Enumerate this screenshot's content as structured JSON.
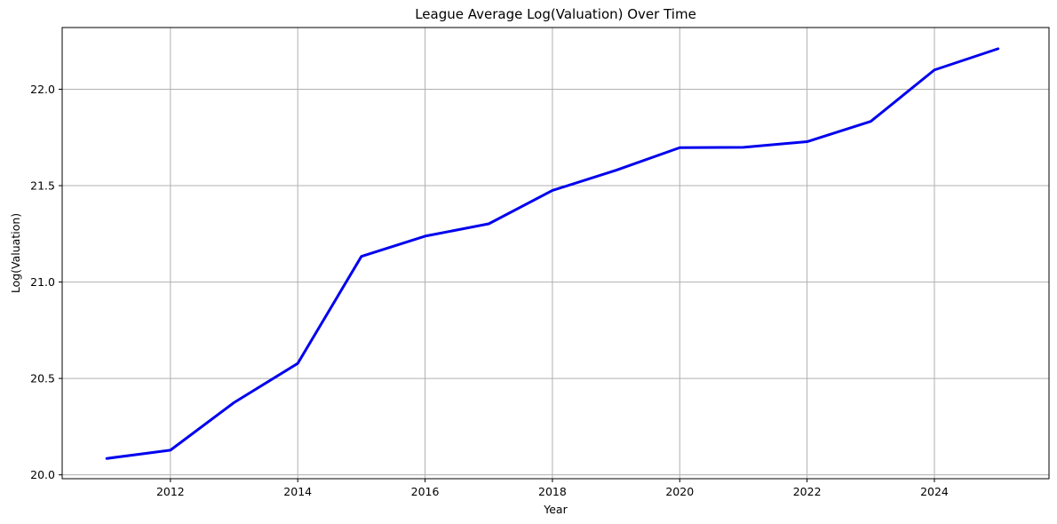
{
  "chart_data": {
    "type": "line",
    "title": "League Average Log(Valuation) Over Time",
    "xlabel": "Year",
    "ylabel": "Log(Valuation)",
    "xlim": [
      2010.3,
      2025.8
    ],
    "ylim": [
      19.98,
      22.32
    ],
    "xticks": [
      2012,
      2014,
      2016,
      2018,
      2020,
      2022,
      2024
    ],
    "yticks": [
      20.0,
      20.5,
      21.0,
      21.5,
      22.0
    ],
    "ytick_labels": [
      "20.0",
      "20.5",
      "21.0",
      "21.5",
      "22.0"
    ],
    "grid": true,
    "series_color": "#0000ee",
    "x": [
      2011,
      2012,
      2013,
      2014,
      2015,
      2016,
      2017,
      2018,
      2019,
      2020,
      2021,
      2022,
      2023,
      2024,
      2025
    ],
    "y": [
      20.085,
      20.128,
      20.375,
      20.578,
      21.133,
      21.238,
      21.302,
      21.475,
      21.58,
      21.697,
      21.699,
      21.728,
      21.833,
      22.1,
      22.21
    ]
  }
}
